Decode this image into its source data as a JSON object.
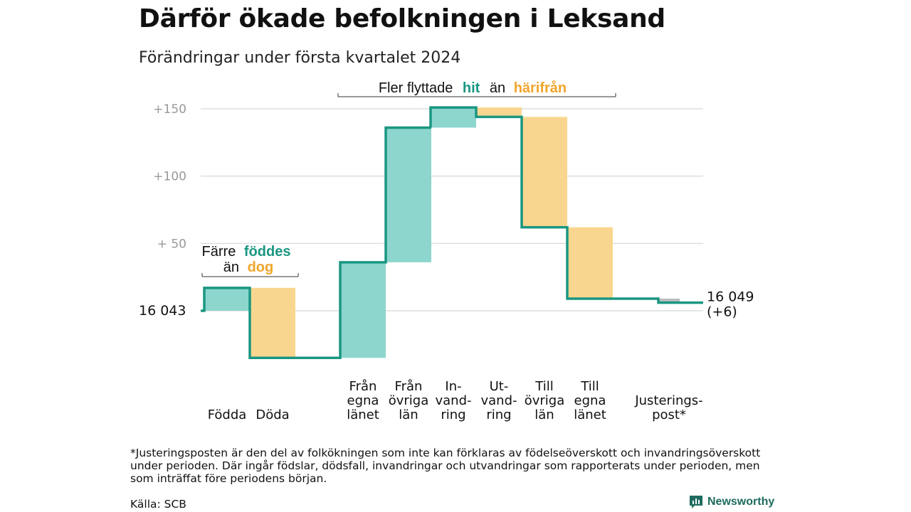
{
  "title": "Därför ökade befolkningen i Leksand",
  "subtitle": "Förändringar under första kvartalet 2024",
  "chart_data": {
    "type": "waterfall",
    "start_label": "16 043",
    "start_value": 16043,
    "end_label": "16 049",
    "end_change_label": "(+6)",
    "end_value": 16049,
    "y_tick_labels": [
      "+150",
      "+100",
      "+ 50"
    ],
    "y_ticks": [
      150,
      100,
      50
    ],
    "ylim": [
      -35,
      155
    ],
    "grid": true,
    "steps": [
      {
        "label": "Födda",
        "value": 17
      },
      {
        "label": "Döda",
        "value": -52
      },
      {
        "label": "Från egna länet",
        "value": 71
      },
      {
        "label": "Från övriga län",
        "value": 100
      },
      {
        "label": "In-vandring",
        "value": 15
      },
      {
        "label": "Ut-vandring",
        "value": -7
      },
      {
        "label": "Till övriga län",
        "value": -82
      },
      {
        "label": "Till egna länet",
        "value": -53
      },
      {
        "label": "Justerings-post*",
        "value": -3
      }
    ],
    "category_labels": [
      [
        "Födda"
      ],
      [
        "Döda"
      ],
      [
        "Från",
        "egna",
        "länet"
      ],
      [
        "Från",
        "övriga",
        "län"
      ],
      [
        "In-",
        "vand-",
        "ring"
      ],
      [
        "Ut-",
        "vand-",
        "ring"
      ],
      [
        "Till",
        "övriga",
        "län"
      ],
      [
        "Till",
        "egna",
        "länet"
      ],
      [
        "Justerings-",
        "post*"
      ]
    ],
    "annotations": {
      "births": {
        "prefix_line1": "Färre",
        "word_line1": "föddes",
        "prefix_line2": "än",
        "word_line2": "dog"
      },
      "migration": {
        "prefix": "Fler flyttade",
        "word1": "hit",
        "middle": "än",
        "word2": "härifrån"
      }
    }
  },
  "colors": {
    "increase": "#8dd6cd",
    "decrease": "#f9d68f",
    "line": "#1a9682",
    "highlight_teal": "#1a9682",
    "highlight_orange": "#f0a52a",
    "grid": "#dddddd",
    "adjustment": "#bbbbbb"
  },
  "footnote": "*Justeringsposten är den del av folkökningen som inte kan förklaras av födelseöverskott och invandringsöverskott under perioden. Där ingår födslar, dödsfall, invandringar och utvandringar som rapporterats under perioden, men som inträffat före periodens början.",
  "source": "Källa: SCB",
  "brand": "Newsworthy"
}
